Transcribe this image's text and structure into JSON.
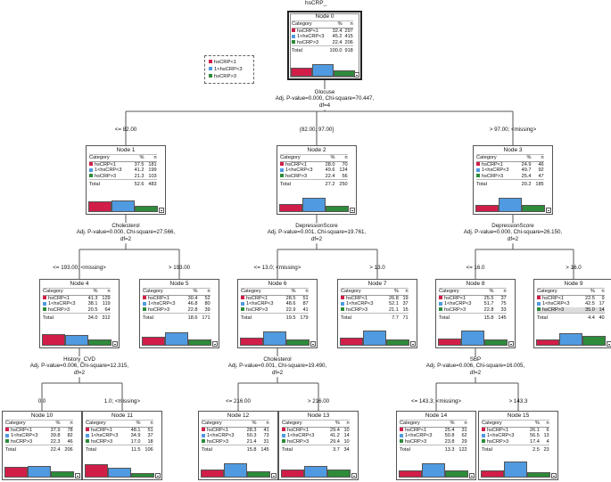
{
  "title": "hsCRP_",
  "colors": {
    "c0": "#d11e48",
    "c1": "#4f9ae0",
    "c2": "#2e8b3a"
  },
  "legend": [
    "hsCRP<1",
    "1<hsCRP<3",
    "hsCRP>3"
  ],
  "table_header": {
    "category": "Category",
    "pct": "%",
    "n": "n"
  },
  "total_label": "Total",
  "nodes": [
    {
      "id": 0,
      "title": "Node 0",
      "rows": [
        {
          "category": "hsCRP<1",
          "pct": "32.4",
          "n": "297"
        },
        {
          "category": "1<hsCRP<3",
          "pct": "45.2",
          "n": "415"
        },
        {
          "category": "hsCRP>3",
          "pct": "22.4",
          "n": "206"
        }
      ],
      "total": {
        "pct": "100.0",
        "n": "918"
      },
      "bar_fractions": [
        0.324,
        0.452,
        0.224
      ]
    },
    {
      "id": 1,
      "title": "Node 1",
      "rows": [
        {
          "category": "hsCRP<1",
          "pct": "37.5",
          "n": "181"
        },
        {
          "category": "1<hsCRP<3",
          "pct": "41.2",
          "n": "199"
        },
        {
          "category": "hsCRP>3",
          "pct": "21.3",
          "n": "103"
        }
      ],
      "total": {
        "pct": "52.6",
        "n": "483"
      },
      "bar_fractions": [
        0.375,
        0.412,
        0.213
      ]
    },
    {
      "id": 2,
      "title": "Node 2",
      "rows": [
        {
          "category": "hsCRP<1",
          "pct": "28.0",
          "n": "70"
        },
        {
          "category": "1<hsCRP<3",
          "pct": "49.6",
          "n": "124"
        },
        {
          "category": "hsCRP>3",
          "pct": "22.4",
          "n": "56"
        }
      ],
      "total": {
        "pct": "27.2",
        "n": "250"
      },
      "bar_fractions": [
        0.28,
        0.496,
        0.224
      ]
    },
    {
      "id": 3,
      "title": "Node 3",
      "rows": [
        {
          "category": "hsCRP<1",
          "pct": "24.9",
          "n": "46"
        },
        {
          "category": "1<hsCRP<3",
          "pct": "49.7",
          "n": "92"
        },
        {
          "category": "hsCRP>3",
          "pct": "25.4",
          "n": "47"
        }
      ],
      "total": {
        "pct": "20.2",
        "n": "185"
      },
      "bar_fractions": [
        0.249,
        0.497,
        0.254
      ]
    },
    {
      "id": 4,
      "title": "Node 4",
      "rows": [
        {
          "category": "hsCRP<1",
          "pct": "41.3",
          "n": "129"
        },
        {
          "category": "1<hsCRP<3",
          "pct": "38.1",
          "n": "119"
        },
        {
          "category": "hsCRP>3",
          "pct": "20.5",
          "n": "64"
        }
      ],
      "total": {
        "pct": "34.0",
        "n": "312"
      },
      "bar_fractions": [
        0.413,
        0.381,
        0.205
      ]
    },
    {
      "id": 5,
      "title": "Node 5",
      "rows": [
        {
          "category": "hsCRP<1",
          "pct": "30.4",
          "n": "52"
        },
        {
          "category": "1<hsCRP<3",
          "pct": "46.8",
          "n": "80"
        },
        {
          "category": "hsCRP>3",
          "pct": "22.8",
          "n": "39"
        }
      ],
      "total": {
        "pct": "18.6",
        "n": "171"
      },
      "bar_fractions": [
        0.304,
        0.468,
        0.228
      ]
    },
    {
      "id": 6,
      "title": "Node 6",
      "rows": [
        {
          "category": "hsCRP<1",
          "pct": "28.5",
          "n": "51"
        },
        {
          "category": "1<hsCRP<3",
          "pct": "48.6",
          "n": "87"
        },
        {
          "category": "hsCRP>3",
          "pct": "22.9",
          "n": "41"
        }
      ],
      "total": {
        "pct": "19.5",
        "n": "179"
      },
      "bar_fractions": [
        0.285,
        0.486,
        0.229
      ]
    },
    {
      "id": 7,
      "title": "Node 7",
      "rows": [
        {
          "category": "hsCRP<1",
          "pct": "26.8",
          "n": "19"
        },
        {
          "category": "1<hsCRP<3",
          "pct": "52.1",
          "n": "37"
        },
        {
          "category": "hsCRP>3",
          "pct": "21.1",
          "n": "15"
        }
      ],
      "total": {
        "pct": "7.7",
        "n": "71"
      },
      "bar_fractions": [
        0.268,
        0.521,
        0.211
      ]
    },
    {
      "id": 8,
      "title": "Node 8",
      "rows": [
        {
          "category": "hsCRP<1",
          "pct": "25.5",
          "n": "37"
        },
        {
          "category": "1<hsCRP<3",
          "pct": "51.7",
          "n": "75"
        },
        {
          "category": "hsCRP>3",
          "pct": "22.8",
          "n": "33"
        }
      ],
      "total": {
        "pct": "15.8",
        "n": "145"
      },
      "bar_fractions": [
        0.255,
        0.517,
        0.228
      ]
    },
    {
      "id": 9,
      "title": "Node 9",
      "rows": [
        {
          "category": "hsCRP<1",
          "pct": "22.5",
          "n": "9"
        },
        {
          "category": "1<hsCRP<3",
          "pct": "42.5",
          "n": "17"
        },
        {
          "category": "hsCRP>3",
          "pct": "35.0",
          "n": "14"
        }
      ],
      "total": {
        "pct": "4.4",
        "n": "40"
      },
      "bar_fractions": [
        0.225,
        0.425,
        0.35
      ]
    },
    {
      "id": 10,
      "title": "Node 10",
      "rows": [
        {
          "category": "hsCRP<1",
          "pct": "37.9",
          "n": "78"
        },
        {
          "category": "1<hsCRP<3",
          "pct": "39.8",
          "n": "82"
        },
        {
          "category": "hsCRP>3",
          "pct": "22.3",
          "n": "46"
        }
      ],
      "total": {
        "pct": "22.4",
        "n": "206"
      },
      "bar_fractions": [
        0.379,
        0.398,
        0.223
      ]
    },
    {
      "id": 11,
      "title": "Node 11",
      "rows": [
        {
          "category": "hsCRP<1",
          "pct": "48.1",
          "n": "51"
        },
        {
          "category": "1<hsCRP<3",
          "pct": "34.9",
          "n": "37"
        },
        {
          "category": "hsCRP>3",
          "pct": "17.0",
          "n": "18"
        }
      ],
      "total": {
        "pct": "11.5",
        "n": "106"
      },
      "bar_fractions": [
        0.481,
        0.349,
        0.17
      ]
    },
    {
      "id": 12,
      "title": "Node 12",
      "rows": [
        {
          "category": "hsCRP<1",
          "pct": "28.3",
          "n": "41"
        },
        {
          "category": "1<hsCRP<3",
          "pct": "50.3",
          "n": "73"
        },
        {
          "category": "hsCRP>3",
          "pct": "21.4",
          "n": "31"
        }
      ],
      "total": {
        "pct": "15.8",
        "n": "145"
      },
      "bar_fractions": [
        0.283,
        0.503,
        0.214
      ]
    },
    {
      "id": 13,
      "title": "Node 13",
      "rows": [
        {
          "category": "hsCRP<1",
          "pct": "29.4",
          "n": "10"
        },
        {
          "category": "1<hsCRP<3",
          "pct": "41.2",
          "n": "14"
        },
        {
          "category": "hsCRP>3",
          "pct": "29.4",
          "n": "10"
        }
      ],
      "total": {
        "pct": "3.7",
        "n": "34"
      },
      "bar_fractions": [
        0.294,
        0.412,
        0.294
      ]
    },
    {
      "id": 14,
      "title": "Node 14",
      "rows": [
        {
          "category": "hsCRP<1",
          "pct": "25.4",
          "n": "31"
        },
        {
          "category": "1<hsCRP<3",
          "pct": "50.8",
          "n": "62"
        },
        {
          "category": "hsCRP>3",
          "pct": "23.8",
          "n": "29"
        }
      ],
      "total": {
        "pct": "13.3",
        "n": "122"
      },
      "bar_fractions": [
        0.254,
        0.508,
        0.238
      ]
    },
    {
      "id": 15,
      "title": "Node 15",
      "rows": [
        {
          "category": "hsCRP<1",
          "pct": "26.1",
          "n": "6"
        },
        {
          "category": "1<hsCRP<3",
          "pct": "56.5",
          "n": "13"
        },
        {
          "category": "hsCRP>3",
          "pct": "17.4",
          "n": "4"
        }
      ],
      "total": {
        "pct": "2.5",
        "n": "23"
      },
      "bar_fractions": [
        0.261,
        0.565,
        0.174
      ]
    }
  ],
  "splits": [
    {
      "node": 0,
      "lines": [
        "Glocuse",
        "Adj. P-value=0.000, Chi-square=70.447,",
        "df=4"
      ]
    },
    {
      "node": 1,
      "lines": [
        "Cholesterol",
        "Adj. P-value=0.000, Chi-square=27.566,",
        "df=2"
      ]
    },
    {
      "node": 2,
      "lines": [
        "DepressionScore",
        "Adj. P-value=0.001, Chi-square=19.761,",
        "df=2"
      ]
    },
    {
      "node": 3,
      "lines": [
        "DepressionScore",
        "Adj. P-value=0.000, Chi-square=26.150,",
        "df=2"
      ]
    },
    {
      "node": 4,
      "lines": [
        "History_CVD",
        "Adj. P-value=0.006, Chi-square=12.315,",
        "df=2"
      ]
    },
    {
      "node": 6,
      "lines": [
        "Cholesterol",
        "Adj. P-value=0.001, Chi-square=19.490,",
        "df=2"
      ]
    },
    {
      "node": 8,
      "lines": [
        "SBP",
        "Adj. P-value=0.006, Chi-square=16.005,",
        "df=2"
      ]
    }
  ],
  "branches": [
    {
      "label": "<= 82.00"
    },
    {
      "label": "(82.00, 97.00]"
    },
    {
      "label": "> 97.00; <missing>"
    },
    {
      "label": "<= 193.00; <missing>"
    },
    {
      "label": "> 193.00"
    },
    {
      "label": "<= 13.0; <missing>"
    },
    {
      "label": "> 13.0"
    },
    {
      "label": "<= 16.0"
    },
    {
      "label": "> 16.0"
    },
    {
      "label": "0.0"
    },
    {
      "label": "1.0; <missing>"
    },
    {
      "label": "<= 216.00"
    },
    {
      "label": "> 216.00"
    },
    {
      "label": "<= 143.3; <missing>"
    },
    {
      "label": "> 143.3"
    }
  ]
}
